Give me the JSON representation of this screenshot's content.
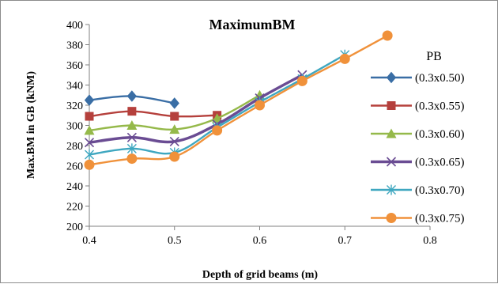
{
  "chart_data": {
    "type": "line",
    "title": "MaximumBM",
    "xlabel": "Depth of grid beams (m)",
    "ylabel": "Max.BM in GB (kNM)",
    "xlim": [
      0.4,
      0.8
    ],
    "ylim": [
      200,
      400
    ],
    "x_ticks": [
      "0.4",
      "0.5",
      "0.6",
      "0.7",
      "0.8"
    ],
    "y_ticks": [
      "200",
      "220",
      "240",
      "260",
      "280",
      "300",
      "320",
      "340",
      "360",
      "380",
      "400"
    ],
    "grid": false,
    "legend_title": "PB",
    "legend_position": "right",
    "series": [
      {
        "name": "(0.3x0.50)",
        "color": "#3a6ea5",
        "marker": "diamond",
        "x": [
          0.4,
          0.45,
          0.5
        ],
        "values": [
          325,
          329,
          322
        ]
      },
      {
        "name": "(0.3x0.55)",
        "color": "#b5403c",
        "marker": "square",
        "x": [
          0.4,
          0.45,
          0.5,
          0.55
        ],
        "values": [
          309,
          314,
          309,
          310
        ]
      },
      {
        "name": "(0.3x0.60)",
        "color": "#95b94a",
        "marker": "triangle",
        "x": [
          0.4,
          0.45,
          0.5,
          0.55,
          0.6
        ],
        "values": [
          295,
          300,
          296,
          307,
          330
        ]
      },
      {
        "name": "(0.3x0.65)",
        "color": "#6a4c93",
        "marker": "x",
        "x": [
          0.4,
          0.45,
          0.5,
          0.55,
          0.6,
          0.65
        ],
        "values": [
          283,
          288,
          284,
          301,
          327,
          350
        ]
      },
      {
        "name": "(0.3x0.70)",
        "color": "#3fa7c0",
        "marker": "asterisk",
        "x": [
          0.4,
          0.45,
          0.5,
          0.55,
          0.6,
          0.65,
          0.7
        ],
        "values": [
          271,
          277,
          273,
          298,
          323,
          346,
          370
        ]
      },
      {
        "name": "(0.3x0.75)",
        "color": "#f0913a",
        "marker": "circle",
        "x": [
          0.4,
          0.45,
          0.5,
          0.55,
          0.6,
          0.65,
          0.7,
          0.75
        ],
        "values": [
          261,
          267,
          269,
          295,
          320,
          344,
          366,
          389
        ]
      }
    ]
  }
}
